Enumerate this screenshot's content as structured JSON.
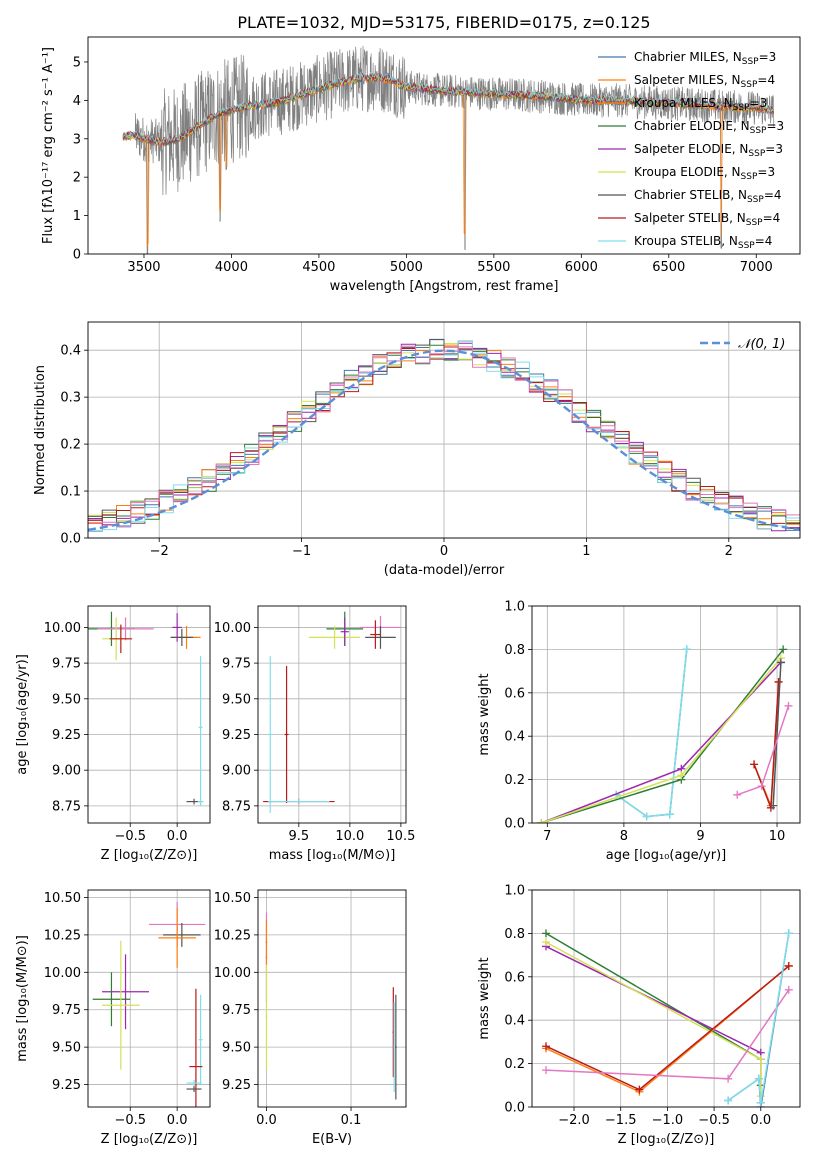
{
  "figure": {
    "title": "PLATE=1032, MJD=53175, FIBERID=0175, z=0.125"
  },
  "colors": {
    "Chabrier MILES": "#4477aa",
    "Salpeter MILES": "#ff7f0e",
    "Kroupa MILES": "#ff7f0e",
    "Chabrier ELODIE": "#2e7d32",
    "Salpeter ELODIE": "#9c27b0",
    "Kroupa ELODIE": "#d4e157",
    "Chabrier STELIB": "#555555",
    "Salpeter STELIB": "#b71c1c",
    "Kroupa STELIB": "#80deea",
    "data": "#808080",
    "normal": "#5b8fd8",
    "extra": "#e377c2"
  },
  "chart_data": [
    {
      "id": "spectrum",
      "type": "line",
      "xlabel": "wavelength [Angstrom, rest frame]",
      "ylabel": "Flux [fλ10⁻¹⁷ erg cm⁻² s⁻¹ A⁻¹]",
      "xlim": [
        3180,
        7250
      ],
      "ylim": [
        0,
        5.65
      ],
      "xticks": [
        3500,
        4000,
        4500,
        5000,
        5500,
        6000,
        6500,
        7000
      ],
      "yticks": [
        0,
        1,
        2,
        3,
        4,
        5
      ],
      "grid": false,
      "legend_position": "top-right",
      "legend": [
        {
          "label": "Chabrier MILES, N",
          "sub": "SSP",
          "tail": "=3",
          "color": "#4477aa"
        },
        {
          "label": "Salpeter MILES, N",
          "sub": "SSP",
          "tail": "=4",
          "color": "#ff7f0e"
        },
        {
          "label": "Kroupa MILES, N",
          "sub": "SSP",
          "tail": "=3",
          "color": "#ff7f0e"
        },
        {
          "label": "Chabrier ELODIE, N",
          "sub": "SSP",
          "tail": "=3",
          "color": "#2e7d32"
        },
        {
          "label": "Salpeter ELODIE, N",
          "sub": "SSP",
          "tail": "=3",
          "color": "#9c27b0"
        },
        {
          "label": "Kroupa ELODIE, N",
          "sub": "SSP",
          "tail": "=3",
          "color": "#d4e157"
        },
        {
          "label": "Chabrier STELIB, N",
          "sub": "SSP",
          "tail": "=4",
          "color": "#555555"
        },
        {
          "label": "Salpeter STELIB, N",
          "sub": "SSP",
          "tail": "=4",
          "color": "#b71c1c"
        },
        {
          "label": "Kroupa STELIB, N",
          "sub": "SSP",
          "tail": "=4",
          "color": "#80deea"
        }
      ],
      "continuum": {
        "x": [
          3380,
          3450,
          3500,
          3550,
          3600,
          3700,
          3800,
          3900,
          4000,
          4100,
          4200,
          4300,
          4400,
          4500,
          4600,
          4700,
          4800,
          4900,
          5000,
          5200,
          5400,
          5600,
          5800,
          6000,
          6200,
          6400,
          6600,
          6800,
          7000,
          7100
        ],
        "y": [
          3.05,
          3.1,
          3.0,
          2.95,
          2.9,
          3.0,
          3.3,
          3.6,
          3.75,
          3.85,
          3.9,
          4.0,
          4.15,
          4.3,
          4.45,
          4.55,
          4.6,
          4.55,
          4.35,
          4.25,
          4.2,
          4.15,
          4.1,
          4.0,
          4.0,
          3.95,
          3.9,
          3.85,
          3.8,
          3.75
        ]
      },
      "absorption_lines": [
        {
          "x": 3520,
          "depth": 3.0
        },
        {
          "x": 3935,
          "depth": 2.8
        },
        {
          "x": 3970,
          "depth": 1.5
        },
        {
          "x": 5335,
          "depth": 4.1
        },
        {
          "x": 6800,
          "depth": 3.7
        }
      ]
    },
    {
      "id": "residuals",
      "type": "step",
      "xlabel": "(data-model)/error",
      "ylabel": "Normed distribution",
      "xlim": [
        -2.5,
        2.5
      ],
      "ylim": [
        0,
        0.46
      ],
      "xticks": [
        -2,
        -1,
        0,
        1,
        2
      ],
      "yticks": [
        0.0,
        0.1,
        0.2,
        0.3,
        0.4
      ],
      "grid": true,
      "legend_position": "top-right",
      "legend_label": "𝒩(0, 1)",
      "bin_width": 0.1,
      "bin_start": -2.5,
      "series_colors": [
        "#4477aa",
        "#ff7f0e",
        "#2e7d32",
        "#9c27b0",
        "#d4e157",
        "#555555",
        "#b71c1c",
        "#80deea",
        "#e377c2"
      ]
    },
    {
      "id": "age_vs_Z",
      "type": "scatter",
      "xlabel": "Z [log₁₀(Z/Z⊙)]",
      "ylabel": "age  [log₁₀(age/yr)]",
      "xlim": [
        -0.95,
        0.35
      ],
      "ylim": [
        8.63,
        10.15
      ],
      "xticks": [
        -0.5,
        0.0
      ],
      "yticks": [
        8.75,
        9.0,
        9.25,
        9.5,
        9.75,
        10.0
      ],
      "grid": true,
      "points": [
        {
          "x": -0.7,
          "y": 9.99,
          "xerr": 0.25,
          "yerr": 0.12,
          "color": "#2e7d32"
        },
        {
          "x": -0.55,
          "y": 9.99,
          "xerr": 0.3,
          "yerr": 0.08,
          "color": "#e377c2"
        },
        {
          "x": -0.65,
          "y": 9.92,
          "xerr": 0.15,
          "yerr": 0.15,
          "color": "#d4e157"
        },
        {
          "x": -0.6,
          "y": 9.92,
          "xerr": 0.12,
          "yerr": 0.1,
          "color": "#b71c1c"
        },
        {
          "x": 0.1,
          "y": 9.93,
          "xerr": 0.15,
          "yerr": 0.08,
          "color": "#ff7f0e"
        },
        {
          "x": 0.05,
          "y": 9.93,
          "xerr": 0.12,
          "yerr": 0.06,
          "color": "#555555"
        },
        {
          "x": 0.0,
          "y": 10.0,
          "xerr": 0.05,
          "yerr": 0.1,
          "color": "#9c27b0"
        },
        {
          "x": 0.25,
          "y": 9.3,
          "xerr": 0.02,
          "yerr": 0.5,
          "color": "#80deea"
        },
        {
          "x": 0.18,
          "y": 8.78,
          "xerr": 0.08,
          "yerr": 0.02,
          "color": "#555555"
        },
        {
          "x": 0.25,
          "y": 8.78,
          "xerr": 0.03,
          "yerr": 0.03,
          "color": "#80deea"
        }
      ]
    },
    {
      "id": "age_vs_mass",
      "type": "scatter",
      "xlabel": "mass [log₁₀(M/M⊙)]",
      "ylabel": "",
      "xlim": [
        9.1,
        10.55
      ],
      "ylim": [
        8.63,
        10.15
      ],
      "xticks": [
        9.5,
        10.0,
        10.5
      ],
      "yticks": [
        8.75,
        9.0,
        9.25,
        9.5,
        9.75,
        10.0
      ],
      "grid": true,
      "points": [
        {
          "x": 9.95,
          "y": 9.99,
          "xerr": 0.18,
          "yerr": 0.12,
          "color": "#2e7d32"
        },
        {
          "x": 10.3,
          "y": 10.0,
          "xerr": 0.2,
          "yerr": 0.08,
          "color": "#e377c2"
        },
        {
          "x": 9.85,
          "y": 9.93,
          "xerr": 0.25,
          "yerr": 0.08,
          "color": "#d4e157"
        },
        {
          "x": 10.3,
          "y": 9.93,
          "xerr": 0.15,
          "yerr": 0.08,
          "color": "#555555"
        },
        {
          "x": 10.25,
          "y": 9.95,
          "xerr": 0.05,
          "yerr": 0.1,
          "color": "#b71c1c"
        },
        {
          "x": 9.95,
          "y": 9.97,
          "xerr": 0.04,
          "yerr": 0.1,
          "color": "#9c27b0"
        },
        {
          "x": 9.22,
          "y": 9.25,
          "xerr": 0.02,
          "yerr": 0.55,
          "color": "#80deea"
        },
        {
          "x": 9.38,
          "y": 9.25,
          "xerr": 0.02,
          "yerr": 0.48,
          "color": "#b71c1c"
        },
        {
          "x": 9.5,
          "y": 8.78,
          "xerr": 0.35,
          "yerr": 0.02,
          "color": "#b71c1c"
        },
        {
          "x": 9.5,
          "y": 8.78,
          "xerr": 0.3,
          "yerr": 0.02,
          "color": "#80deea"
        }
      ]
    },
    {
      "id": "weight_vs_age",
      "type": "line",
      "xlabel": "age  [log₁₀(age/yr)]",
      "ylabel": "mass weight",
      "xlim": [
        6.8,
        10.3
      ],
      "ylim": [
        0.0,
        1.0
      ],
      "xticks": [
        7,
        8,
        9,
        10
      ],
      "yticks": [
        0.0,
        0.2,
        0.4,
        0.6,
        0.8,
        1.0
      ],
      "grid": true,
      "series": [
        {
          "color": "#4477aa",
          "x": [
            7.9,
            8.3,
            8.6,
            8.82
          ],
          "y": [
            0.13,
            0.03,
            0.04,
            0.8
          ]
        },
        {
          "color": "#80deea",
          "x": [
            7.9,
            8.3,
            8.6,
            8.82
          ],
          "y": [
            0.13,
            0.03,
            0.04,
            0.8
          ]
        },
        {
          "color": "#ff7f0e",
          "x": [
            9.7,
            9.92,
            10.02
          ],
          "y": [
            0.27,
            0.08,
            0.65
          ]
        },
        {
          "color": "#b71c1c",
          "x": [
            9.7,
            9.92,
            10.02
          ],
          "y": [
            0.27,
            0.07,
            0.65
          ]
        },
        {
          "color": "#2e7d32",
          "x": [
            6.92,
            8.75,
            10.08
          ],
          "y": [
            0.0,
            0.2,
            0.8
          ]
        },
        {
          "color": "#9c27b0",
          "x": [
            6.92,
            8.75,
            10.05
          ],
          "y": [
            0.0,
            0.25,
            0.74
          ]
        },
        {
          "color": "#d4e157",
          "x": [
            6.92,
            8.75,
            10.05
          ],
          "y": [
            0.0,
            0.22,
            0.76
          ]
        },
        {
          "color": "#555555",
          "x": [
            9.95,
            10.05
          ],
          "y": [
            0.08,
            0.74
          ]
        },
        {
          "color": "#e377c2",
          "x": [
            9.48,
            9.8,
            10.15
          ],
          "y": [
            0.13,
            0.17,
            0.54
          ]
        }
      ]
    },
    {
      "id": "mass_vs_Z",
      "type": "scatter",
      "xlabel": "Z [log₁₀(Z/Z⊙)]",
      "ylabel": "mass [log₁₀(M/M⊙)]",
      "xlim": [
        -0.95,
        0.35
      ],
      "ylim": [
        9.1,
        10.55
      ],
      "xticks": [
        -0.5,
        0.0
      ],
      "yticks": [
        9.25,
        9.5,
        9.75,
        10.0,
        10.25,
        10.5
      ],
      "grid": true,
      "points": [
        {
          "x": 0.0,
          "y": 10.32,
          "xerr": 0.3,
          "yerr": 0.15,
          "color": "#e377c2"
        },
        {
          "x": 0.05,
          "y": 10.25,
          "xerr": 0.2,
          "yerr": 0.08,
          "color": "#555555"
        },
        {
          "x": 0.0,
          "y": 10.23,
          "xerr": 0.2,
          "yerr": 0.2,
          "color": "#ff7f0e"
        },
        {
          "x": -0.55,
          "y": 9.87,
          "xerr": 0.25,
          "yerr": 0.25,
          "color": "#9c27b0"
        },
        {
          "x": -0.7,
          "y": 9.82,
          "xerr": 0.2,
          "yerr": 0.18,
          "color": "#2e7d32"
        },
        {
          "x": -0.6,
          "y": 9.78,
          "xerr": 0.2,
          "yerr": 0.43,
          "color": "#d4e157"
        },
        {
          "x": 0.25,
          "y": 9.55,
          "xerr": 0.02,
          "yerr": 0.3,
          "color": "#80deea"
        },
        {
          "x": 0.2,
          "y": 9.37,
          "xerr": 0.07,
          "yerr": 0.52,
          "color": "#b71c1c"
        },
        {
          "x": 0.18,
          "y": 9.26,
          "xerr": 0.08,
          "yerr": 0.02,
          "color": "#80deea"
        },
        {
          "x": 0.18,
          "y": 9.22,
          "xerr": 0.08,
          "yerr": 0.02,
          "color": "#555555"
        }
      ]
    },
    {
      "id": "mass_vs_ebv",
      "type": "scatter",
      "xlabel": "E(B-V)",
      "ylabel": "",
      "xlim": [
        -0.01,
        0.165
      ],
      "ylim": [
        9.1,
        10.55
      ],
      "xticks": [
        0.0,
        0.1
      ],
      "yticks": [
        9.25,
        9.5,
        9.75,
        10.0,
        10.25,
        10.5
      ],
      "grid": true,
      "points": [
        {
          "x": 0.0,
          "y": 10.1,
          "xerr": 0.001,
          "yerr": 0.3,
          "color": "#e377c2"
        },
        {
          "x": 0.0,
          "y": 10.2,
          "xerr": 0.001,
          "yerr": 0.15,
          "color": "#ff7f0e"
        },
        {
          "x": 0.0,
          "y": 9.7,
          "xerr": 0.001,
          "yerr": 0.35,
          "color": "#d4e157"
        },
        {
          "x": 0.15,
          "y": 9.6,
          "xerr": 0.001,
          "yerr": 0.3,
          "color": "#b71c1c"
        },
        {
          "x": 0.151,
          "y": 9.5,
          "xerr": 0.001,
          "yerr": 0.3,
          "color": "#80deea"
        },
        {
          "x": 0.153,
          "y": 9.5,
          "xerr": 0.001,
          "yerr": 0.35,
          "color": "#555555"
        }
      ]
    },
    {
      "id": "weight_vs_Z",
      "type": "line",
      "xlabel": "Z [log₁₀(Z/Z⊙)]",
      "ylabel": "mass weight",
      "xlim": [
        -2.45,
        0.42
      ],
      "ylim": [
        0.0,
        1.0
      ],
      "xticks": [
        -2.0,
        -1.5,
        -1.0,
        -0.5,
        0.0
      ],
      "yticks": [
        0.0,
        0.2,
        0.4,
        0.6,
        0.8,
        1.0
      ],
      "grid": true,
      "series": [
        {
          "color": "#2e7d32",
          "x": [
            -2.3,
            0.0,
            0.0
          ],
          "y": [
            0.8,
            0.22,
            0.1
          ]
        },
        {
          "color": "#9c27b0",
          "x": [
            -2.3,
            0.0,
            0.0
          ],
          "y": [
            0.74,
            0.25,
            0.02
          ]
        },
        {
          "color": "#d4e157",
          "x": [
            -2.3,
            0.0,
            0.0
          ],
          "y": [
            0.76,
            0.22,
            0.05
          ]
        },
        {
          "color": "#ff7f0e",
          "x": [
            -2.3,
            -1.3,
            0.3
          ],
          "y": [
            0.27,
            0.07,
            0.65
          ]
        },
        {
          "color": "#b71c1c",
          "x": [
            -2.3,
            -1.3,
            0.3
          ],
          "y": [
            0.28,
            0.08,
            0.65
          ]
        },
        {
          "color": "#e377c2",
          "x": [
            -2.3,
            -0.35,
            0.3
          ],
          "y": [
            0.17,
            0.13,
            0.54
          ]
        },
        {
          "color": "#4477aa",
          "x": [
            -0.35,
            -0.02,
            0.0,
            0.3
          ],
          "y": [
            0.03,
            0.13,
            0.0,
            0.8
          ]
        },
        {
          "color": "#80deea",
          "x": [
            -0.35,
            -0.02,
            0.0,
            0.3
          ],
          "y": [
            0.03,
            0.13,
            0.02,
            0.8
          ]
        }
      ]
    }
  ]
}
